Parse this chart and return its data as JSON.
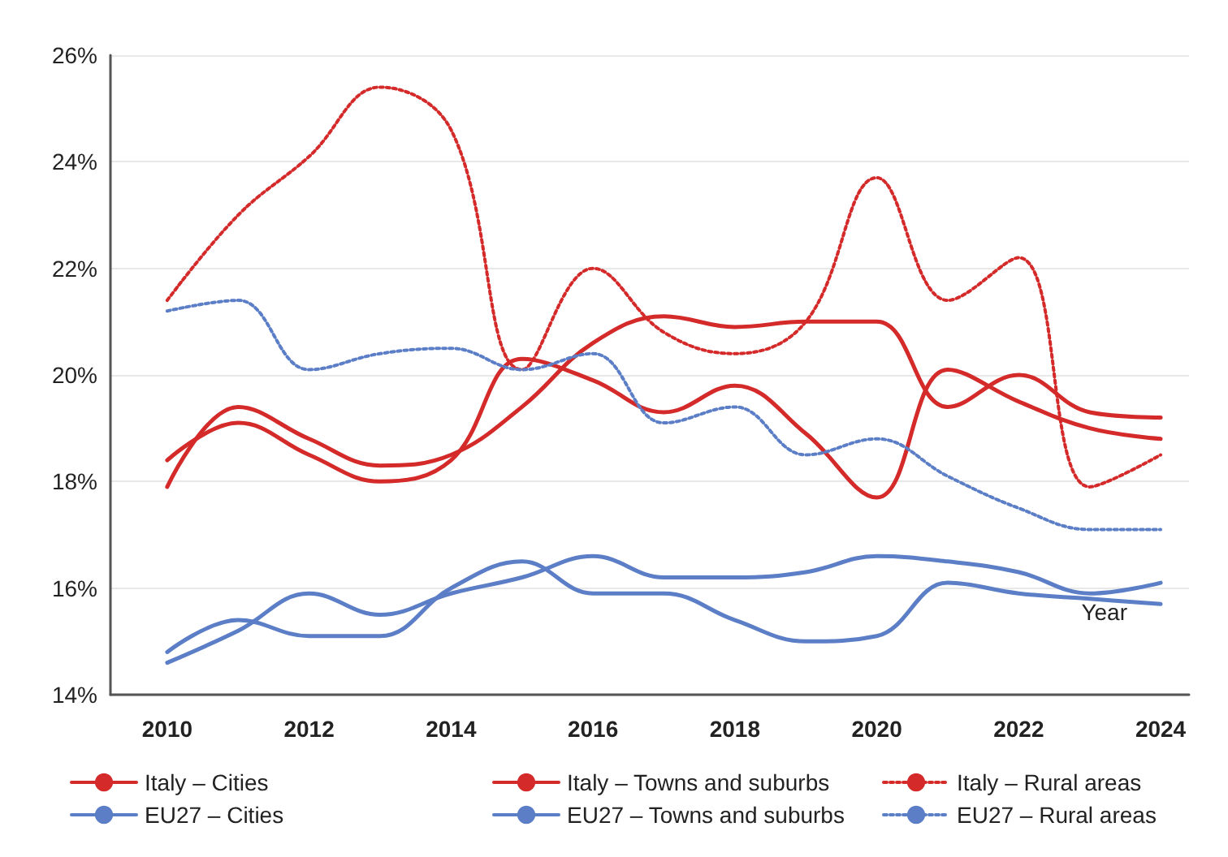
{
  "chart_data": {
    "type": "line",
    "xlabel": "Year",
    "x": [
      2010,
      2011,
      2012,
      2013,
      2014,
      2015,
      2016,
      2017,
      2018,
      2019,
      2020,
      2021,
      2022,
      2023,
      2024
    ],
    "xlim": [
      2009.2,
      2024.4
    ],
    "xticks": [
      2010,
      2012,
      2014,
      2016,
      2018,
      2020,
      2022,
      2024
    ],
    "ylim": [
      14,
      26
    ],
    "yticks": [
      {
        "value": 14,
        "label": "14%"
      },
      {
        "value": 16,
        "label": "16%"
      },
      {
        "value": 18,
        "label": "18%"
      },
      {
        "value": 20,
        "label": "20%"
      },
      {
        "value": 22,
        "label": "22%"
      },
      {
        "value": 24,
        "label": "24%"
      },
      {
        "value": 26,
        "label": "26%"
      }
    ],
    "grid": "y",
    "legend": "bottom",
    "marker": "none",
    "series": [
      {
        "name": "Italy – Cities",
        "color": "#d42a2a",
        "line_style": "solid",
        "values": [
          17.9,
          19.4,
          18.8,
          18.3,
          18.5,
          19.4,
          20.6,
          21.1,
          20.9,
          21.0,
          21.0,
          19.4,
          20.0,
          19.3,
          19.2
        ]
      },
      {
        "name": "Italy – Towns and suburbs",
        "color": "#d42a2a",
        "line_style": "solid",
        "values": [
          18.4,
          19.1,
          18.5,
          18.0,
          18.4,
          20.3,
          19.9,
          19.3,
          19.8,
          18.9,
          17.7,
          20.1,
          19.5,
          19.0,
          18.8
        ]
      },
      {
        "name": "Italy – Rural areas",
        "color": "#d42a2a",
        "line_style": "dotted",
        "values": [
          21.4,
          23.0,
          24.1,
          25.4,
          24.6,
          20.1,
          22.0,
          20.8,
          20.4,
          21.0,
          23.7,
          21.4,
          22.2,
          17.9,
          18.5
        ]
      },
      {
        "name": "EU27 – Cities",
        "color": "#5b7ec7",
        "line_style": "solid",
        "values": [
          14.6,
          15.2,
          15.9,
          15.5,
          15.9,
          16.2,
          16.6,
          16.2,
          16.2,
          16.3,
          16.6,
          16.5,
          16.3,
          15.9,
          16.1
        ]
      },
      {
        "name": "EU27 – Towns and suburbs",
        "color": "#5b7ec7",
        "line_style": "solid",
        "values": [
          14.8,
          15.4,
          15.1,
          15.1,
          16.0,
          16.5,
          15.9,
          15.9,
          15.4,
          15.0,
          15.1,
          16.1,
          15.9,
          15.8,
          15.7
        ]
      },
      {
        "name": "EU27 – Rural areas",
        "color": "#5b7ec7",
        "line_style": "dotted",
        "values": [
          21.2,
          21.4,
          20.1,
          20.4,
          20.5,
          20.1,
          20.4,
          19.1,
          19.4,
          18.5,
          18.8,
          18.1,
          17.5,
          17.1,
          17.1
        ]
      }
    ]
  }
}
